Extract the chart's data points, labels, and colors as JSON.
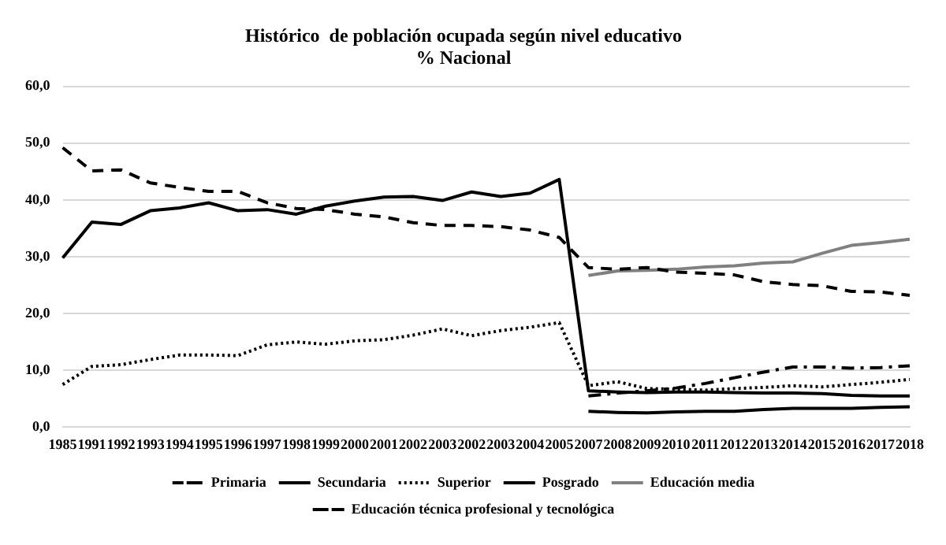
{
  "chart_data": {
    "type": "line",
    "title": "Histórico  de población ocupada según nivel educativo",
    "subtitle": "% Nacional",
    "categories": [
      "1985",
      "1991",
      "1992",
      "1993",
      "1994",
      "1995",
      "1996",
      "1997",
      "1998",
      "1999",
      "2000",
      "2001",
      "2002",
      "2003",
      "2002",
      "2003",
      "2004",
      "2005",
      "2007",
      "2008",
      "2009",
      "2010",
      "2011",
      "2012",
      "2013",
      "2014",
      "2015",
      "2016",
      "2017",
      "2018"
    ],
    "series": [
      {
        "name": "Primaria",
        "color": "#000000",
        "line_style": "dashed",
        "values": [
          49.2,
          45.1,
          45.3,
          43.0,
          42.2,
          41.5,
          41.5,
          39.5,
          38.5,
          38.3,
          37.5,
          37.0,
          36.0,
          35.5,
          35.5,
          35.3,
          34.7,
          33.4,
          28.1,
          27.8,
          28.1,
          27.3,
          27.1,
          26.8,
          25.6,
          25.1,
          24.9,
          23.9,
          23.8,
          23.2
        ]
      },
      {
        "name": "Secundaria",
        "color": "#000000",
        "line_style": "solid",
        "values": [
          29.8,
          36.1,
          35.7,
          38.1,
          38.6,
          39.5,
          38.1,
          38.3,
          37.5,
          38.9,
          39.8,
          40.5,
          40.6,
          39.9,
          41.4,
          40.6,
          41.2,
          43.6,
          6.4,
          6.2,
          6.1,
          6.2,
          6.2,
          6.1,
          6.0,
          6.0,
          5.9,
          5.6,
          5.5,
          5.5
        ]
      },
      {
        "name": "Superior",
        "color": "#000000",
        "line_style": "dotted",
        "values": [
          7.5,
          10.7,
          11.0,
          11.9,
          12.7,
          12.7,
          12.6,
          14.5,
          15.0,
          14.6,
          15.2,
          15.4,
          16.2,
          17.3,
          16.1,
          17.0,
          17.6,
          18.4,
          7.3,
          8.0,
          6.8,
          6.7,
          6.5,
          6.8,
          7.0,
          7.3,
          7.1,
          7.5,
          7.9,
          8.4
        ]
      },
      {
        "name": "Posgrado",
        "color": "#000000",
        "line_style": "solid",
        "values": [
          null,
          null,
          null,
          null,
          null,
          null,
          null,
          null,
          null,
          null,
          null,
          null,
          null,
          null,
          null,
          null,
          null,
          null,
          2.8,
          2.6,
          2.5,
          2.7,
          2.8,
          2.8,
          3.1,
          3.3,
          3.3,
          3.3,
          3.5,
          3.6
        ]
      },
      {
        "name": "Educación media",
        "color": "#808080",
        "line_style": "solid",
        "values": [
          null,
          null,
          null,
          null,
          null,
          null,
          null,
          null,
          null,
          null,
          null,
          null,
          null,
          null,
          null,
          null,
          null,
          null,
          26.7,
          27.5,
          27.6,
          27.8,
          28.2,
          28.4,
          28.9,
          29.1,
          30.6,
          32.0,
          32.5,
          33.1
        ]
      },
      {
        "name": "Educación técnica profesional y tecnológica",
        "color": "#000000",
        "line_style": "dashdot",
        "values": [
          null,
          null,
          null,
          null,
          null,
          null,
          null,
          null,
          null,
          null,
          null,
          null,
          null,
          null,
          null,
          null,
          null,
          null,
          5.5,
          6.0,
          6.4,
          6.9,
          7.7,
          8.7,
          9.7,
          10.6,
          10.6,
          10.4,
          10.5,
          10.8
        ]
      }
    ],
    "ylim": [
      0,
      60
    ],
    "yticks": [
      {
        "value": 0,
        "label": "0,0"
      },
      {
        "value": 10,
        "label": "10,0"
      },
      {
        "value": 20,
        "label": "20,0"
      },
      {
        "value": 30,
        "label": "30,0"
      },
      {
        "value": 40,
        "label": "40,0"
      },
      {
        "value": 50,
        "label": "50,0"
      },
      {
        "value": 60,
        "label": "60,0"
      }
    ],
    "grid": "y",
    "legend": "bottom",
    "marker": "none"
  }
}
